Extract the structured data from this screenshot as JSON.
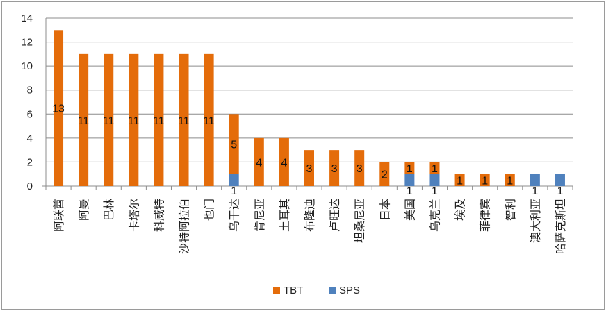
{
  "chart_data": {
    "type": "bar",
    "stacked": true,
    "categories": [
      "阿联酋",
      "阿曼",
      "巴林",
      "卡塔尔",
      "科威特",
      "沙特阿拉伯",
      "也门",
      "乌干达",
      "肯尼亚",
      "土耳其",
      "布隆迪",
      "卢旺达",
      "坦桑尼亚",
      "日本",
      "美国",
      "乌克兰",
      "埃及",
      "菲律宾",
      "智利",
      "澳大利亚",
      "哈萨克斯坦"
    ],
    "series": [
      {
        "name": "SPS",
        "color": "#4f81bd",
        "values": [
          0,
          0,
          0,
          0,
          0,
          0,
          0,
          1,
          0,
          0,
          0,
          0,
          0,
          0,
          1,
          1,
          0,
          0,
          0,
          1,
          1
        ]
      },
      {
        "name": "TBT",
        "color": "#e46c0a",
        "values": [
          13,
          11,
          11,
          11,
          11,
          11,
          11,
          5,
          4,
          4,
          3,
          3,
          3,
          2,
          1,
          1,
          1,
          1,
          1,
          0,
          0
        ]
      }
    ],
    "ylim": [
      0,
      14
    ],
    "yticks": [
      "0",
      "2",
      "4",
      "6",
      "8",
      "10",
      "12",
      "14"
    ],
    "grid": true,
    "legend": {
      "position": "bottom",
      "entries": [
        "TBT",
        "SPS"
      ]
    }
  }
}
